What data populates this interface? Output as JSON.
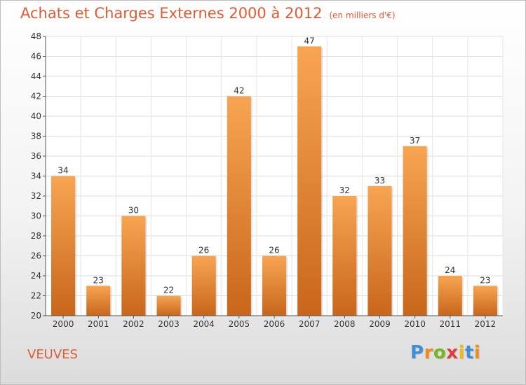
{
  "chart_data": {
    "type": "bar",
    "title": "Achats et Charges Externes 2000 à 2012",
    "unit_label": "(en milliers d'€)",
    "categories": [
      "2000",
      "2001",
      "2002",
      "2003",
      "2004",
      "2005",
      "2006",
      "2007",
      "2008",
      "2009",
      "2010",
      "2011",
      "2012"
    ],
    "values": [
      34,
      23,
      30,
      22,
      26,
      42,
      26,
      47,
      32,
      33,
      37,
      24,
      23
    ],
    "ylim": [
      20,
      48
    ],
    "yticks": [
      20,
      22,
      24,
      26,
      28,
      30,
      32,
      34,
      36,
      38,
      40,
      42,
      44,
      46,
      48
    ],
    "grid": true,
    "bar_color_top": "#f7a552",
    "bar_color_bottom": "#c8661c"
  },
  "commune": "VEUVES",
  "logo": {
    "letters": [
      "P",
      "r",
      "o",
      "x",
      "i",
      "t",
      "i"
    ],
    "colors": [
      "#3f8fd6",
      "#f08a1c",
      "#78b51e",
      "#e23c3c",
      "#f0b81c",
      "#3f8fd6",
      "#f08a1c"
    ]
  }
}
